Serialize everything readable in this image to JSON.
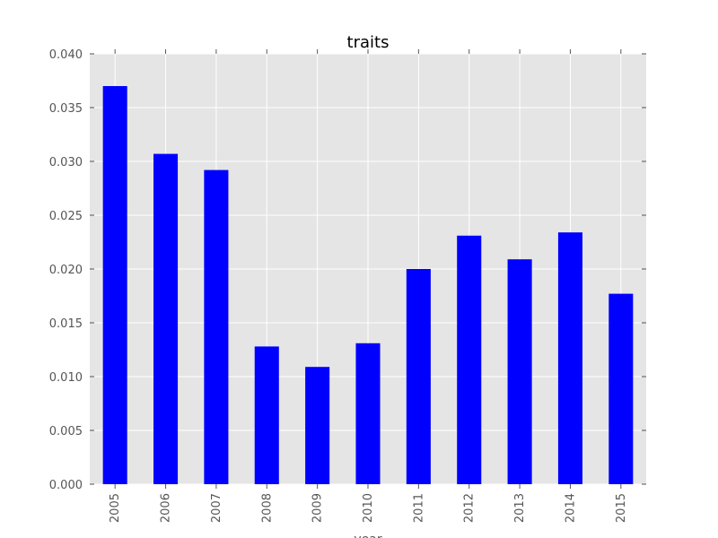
{
  "chart_data": {
    "type": "bar",
    "title": "traits",
    "xlabel": "year",
    "ylabel": "",
    "categories": [
      "2005",
      "2006",
      "2007",
      "2008",
      "2009",
      "2010",
      "2011",
      "2012",
      "2013",
      "2014",
      "2015"
    ],
    "values": [
      0.037,
      0.0307,
      0.0292,
      0.0128,
      0.0109,
      0.0131,
      0.02,
      0.0231,
      0.0209,
      0.0234,
      0.0177
    ],
    "ylim": [
      0,
      0.04
    ],
    "yticks": [
      "0.000",
      "0.005",
      "0.010",
      "0.015",
      "0.020",
      "0.025",
      "0.030",
      "0.035",
      "0.040"
    ],
    "ytick_values": [
      0,
      0.005,
      0.01,
      0.015,
      0.02,
      0.025,
      0.03,
      0.035,
      0.04
    ],
    "grid": true,
    "legend": "none",
    "colors": {
      "bar": "#0000ff",
      "plot_background": "#e5e5e5",
      "grid": "#ffffff",
      "figure_background": "#ffffff"
    }
  }
}
